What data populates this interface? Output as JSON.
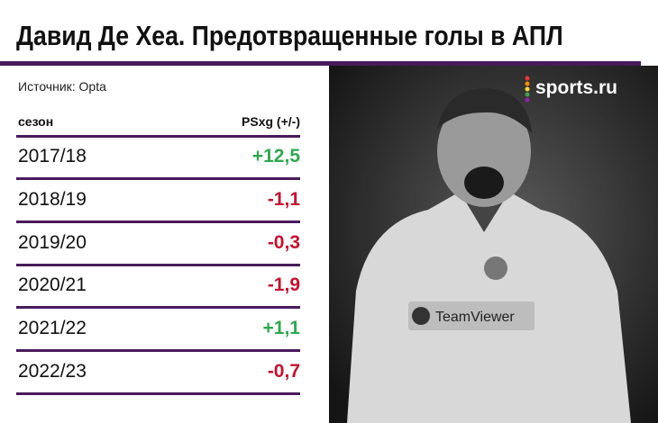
{
  "header": {
    "title": "Давид Де Хеа. Предотвращенные голы в АПЛ",
    "source": "Источник: Opta",
    "brand": "sports.ru"
  },
  "table": {
    "header": [
      "сезон",
      "PSxg (+/-)"
    ],
    "rows": [
      [
        "2017/18",
        "+12,5"
      ],
      [
        "2018/19",
        "-1,1"
      ],
      [
        "2019/20",
        "-0,3"
      ],
      [
        "2020/21",
        "-1,9"
      ],
      [
        "2021/22",
        "+1,1"
      ],
      [
        "2022/23",
        "-0,7"
      ]
    ]
  }
}
